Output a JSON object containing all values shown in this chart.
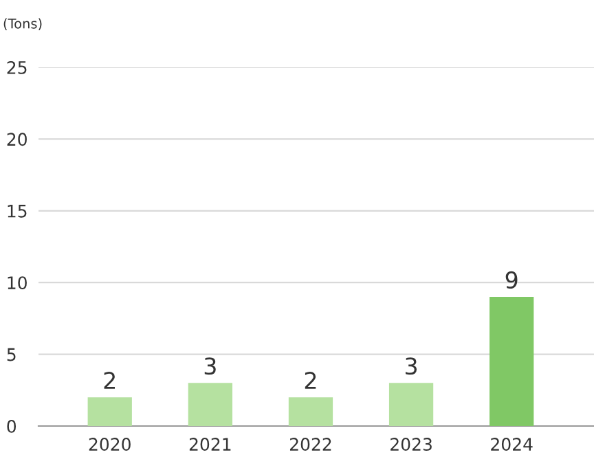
{
  "chart_data": {
    "type": "bar",
    "ylabel": "(Tons)",
    "categories": [
      "2020",
      "2021",
      "2022",
      "2023",
      "2024"
    ],
    "values": [
      2,
      3,
      2,
      3,
      9
    ],
    "colors": [
      "#b5e1a0",
      "#b5e1a0",
      "#b5e1a0",
      "#b5e1a0",
      "#80c865"
    ],
    "ylim": [
      0,
      25
    ],
    "yticks": [
      0,
      5,
      10,
      15,
      20,
      25
    ],
    "grid": "y",
    "data_labels": true
  }
}
